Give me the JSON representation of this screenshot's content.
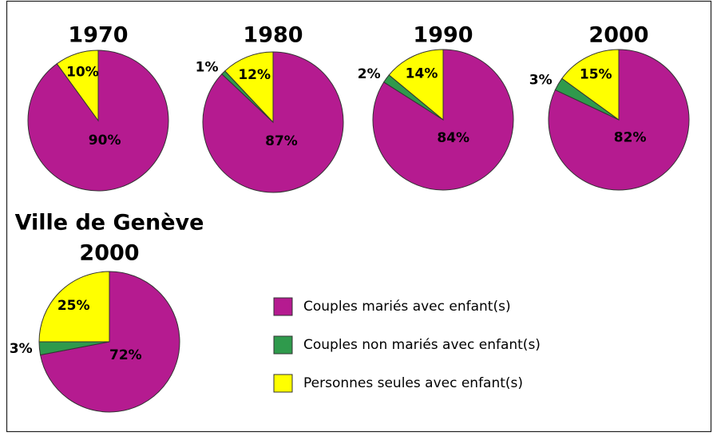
{
  "chart_data": [
    {
      "type": "pie",
      "title": "1970",
      "values": [
        90,
        0,
        10
      ],
      "value_labels": [
        "90%",
        null,
        "10%"
      ]
    },
    {
      "type": "pie",
      "title": "1980",
      "values": [
        87,
        1,
        12
      ],
      "value_labels": [
        "87%",
        "1%",
        "12%"
      ]
    },
    {
      "type": "pie",
      "title": "1990",
      "values": [
        84,
        2,
        14
      ],
      "value_labels": [
        "84%",
        "2%",
        "14%"
      ]
    },
    {
      "type": "pie",
      "title": "2000",
      "values": [
        82,
        3,
        15
      ],
      "value_labels": [
        "82%",
        "3%",
        "15%"
      ]
    },
    {
      "type": "pie",
      "title": [
        "Ville de Genève",
        "2000"
      ],
      "values": [
        72,
        3,
        25
      ],
      "value_labels": [
        "72%",
        "3%",
        "25%"
      ]
    }
  ],
  "legend": {
    "labels": [
      "Couples mariés avec enfant(s)",
      "Couples non mariés avec enfant(s)",
      "Personnes seules avec enfant(s)"
    ],
    "colors": [
      "#b51b90",
      "#2f9a4c",
      "#ffff00"
    ]
  }
}
